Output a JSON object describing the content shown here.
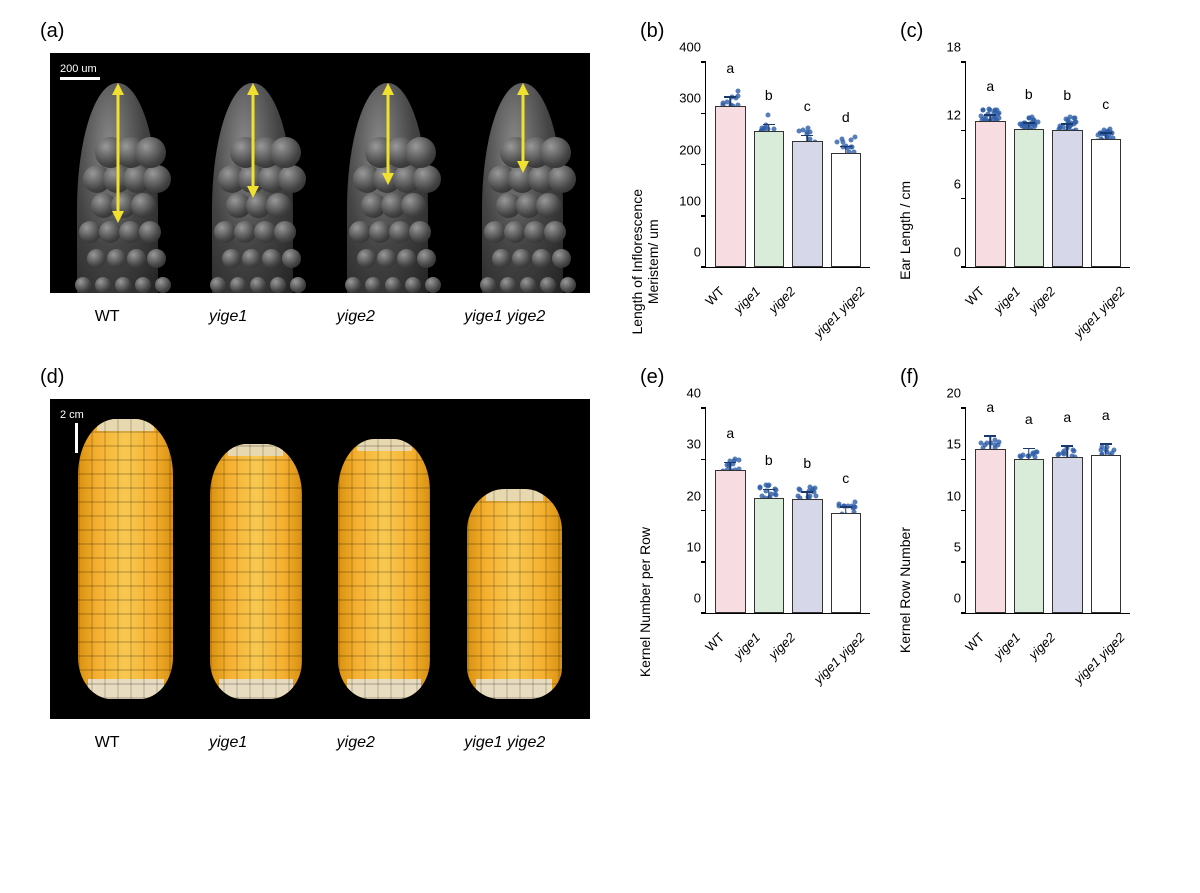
{
  "colors": {
    "bar_stroke": "#333333",
    "dot_color": "#2e5ea8",
    "err_color": "#1a3a6e",
    "axis_color": "#000000",
    "bar_fills": [
      "#f7dde1",
      "#d9ecd9",
      "#d6d8ea",
      "#ffffff"
    ]
  },
  "genotypes": [
    "WT",
    "yige1",
    "yige2",
    "yige1 yige2"
  ],
  "panel_a": {
    "label": "(a)",
    "scale_text": "200 um",
    "arrow_heights": [
      120,
      95,
      82,
      70
    ]
  },
  "panel_d": {
    "label": "(d)",
    "scale_text": "2 cm",
    "ear_heights": [
      280,
      255,
      260,
      210
    ],
    "ear_widths": [
      95,
      92,
      92,
      95
    ]
  },
  "charts": {
    "b": {
      "label": "(b)",
      "ylabel": "Length of Inflorescence\nMeristem/ um",
      "ymin": 0,
      "ymax": 400,
      "ystep": 100,
      "values": [
        315,
        265,
        245,
        222
      ],
      "errors": [
        15,
        12,
        10,
        12
      ],
      "letters": [
        "a",
        "b",
        "c",
        "d"
      ],
      "n_dots": 15,
      "scatter": 12
    },
    "c": {
      "label": "(c)",
      "ylabel": "Ear Length / cm",
      "ymin": 0,
      "ymax": 18,
      "ystep": 6,
      "values": [
        12.8,
        12.1,
        12.0,
        11.2
      ],
      "errors": [
        0.5,
        0.5,
        0.5,
        0.5
      ],
      "letters": [
        "a",
        "b",
        "b",
        "c"
      ],
      "n_dots": 25,
      "scatter": 8
    },
    "e": {
      "label": "(e)",
      "ylabel": "Kernel Number per Row",
      "ymin": 0,
      "ymax": 40,
      "ystep": 10,
      "values": [
        28,
        22.5,
        22.2,
        19.5
      ],
      "errors": [
        1.2,
        1.5,
        1.3,
        1.0
      ],
      "letters": [
        "a",
        "b",
        "b",
        "c"
      ],
      "n_dots": 15,
      "scatter": 8
    },
    "f": {
      "label": "(f)",
      "ylabel": "Kernel Row Number",
      "ymin": 0,
      "ymax": 20,
      "ystep": 5,
      "values": [
        16.0,
        15.0,
        15.2,
        15.4
      ],
      "errors": [
        1.2,
        1.0,
        1.0,
        1.0
      ],
      "letters": [
        "a",
        "a",
        "a",
        "a"
      ],
      "n_dots": 10,
      "scatter": 5
    }
  }
}
